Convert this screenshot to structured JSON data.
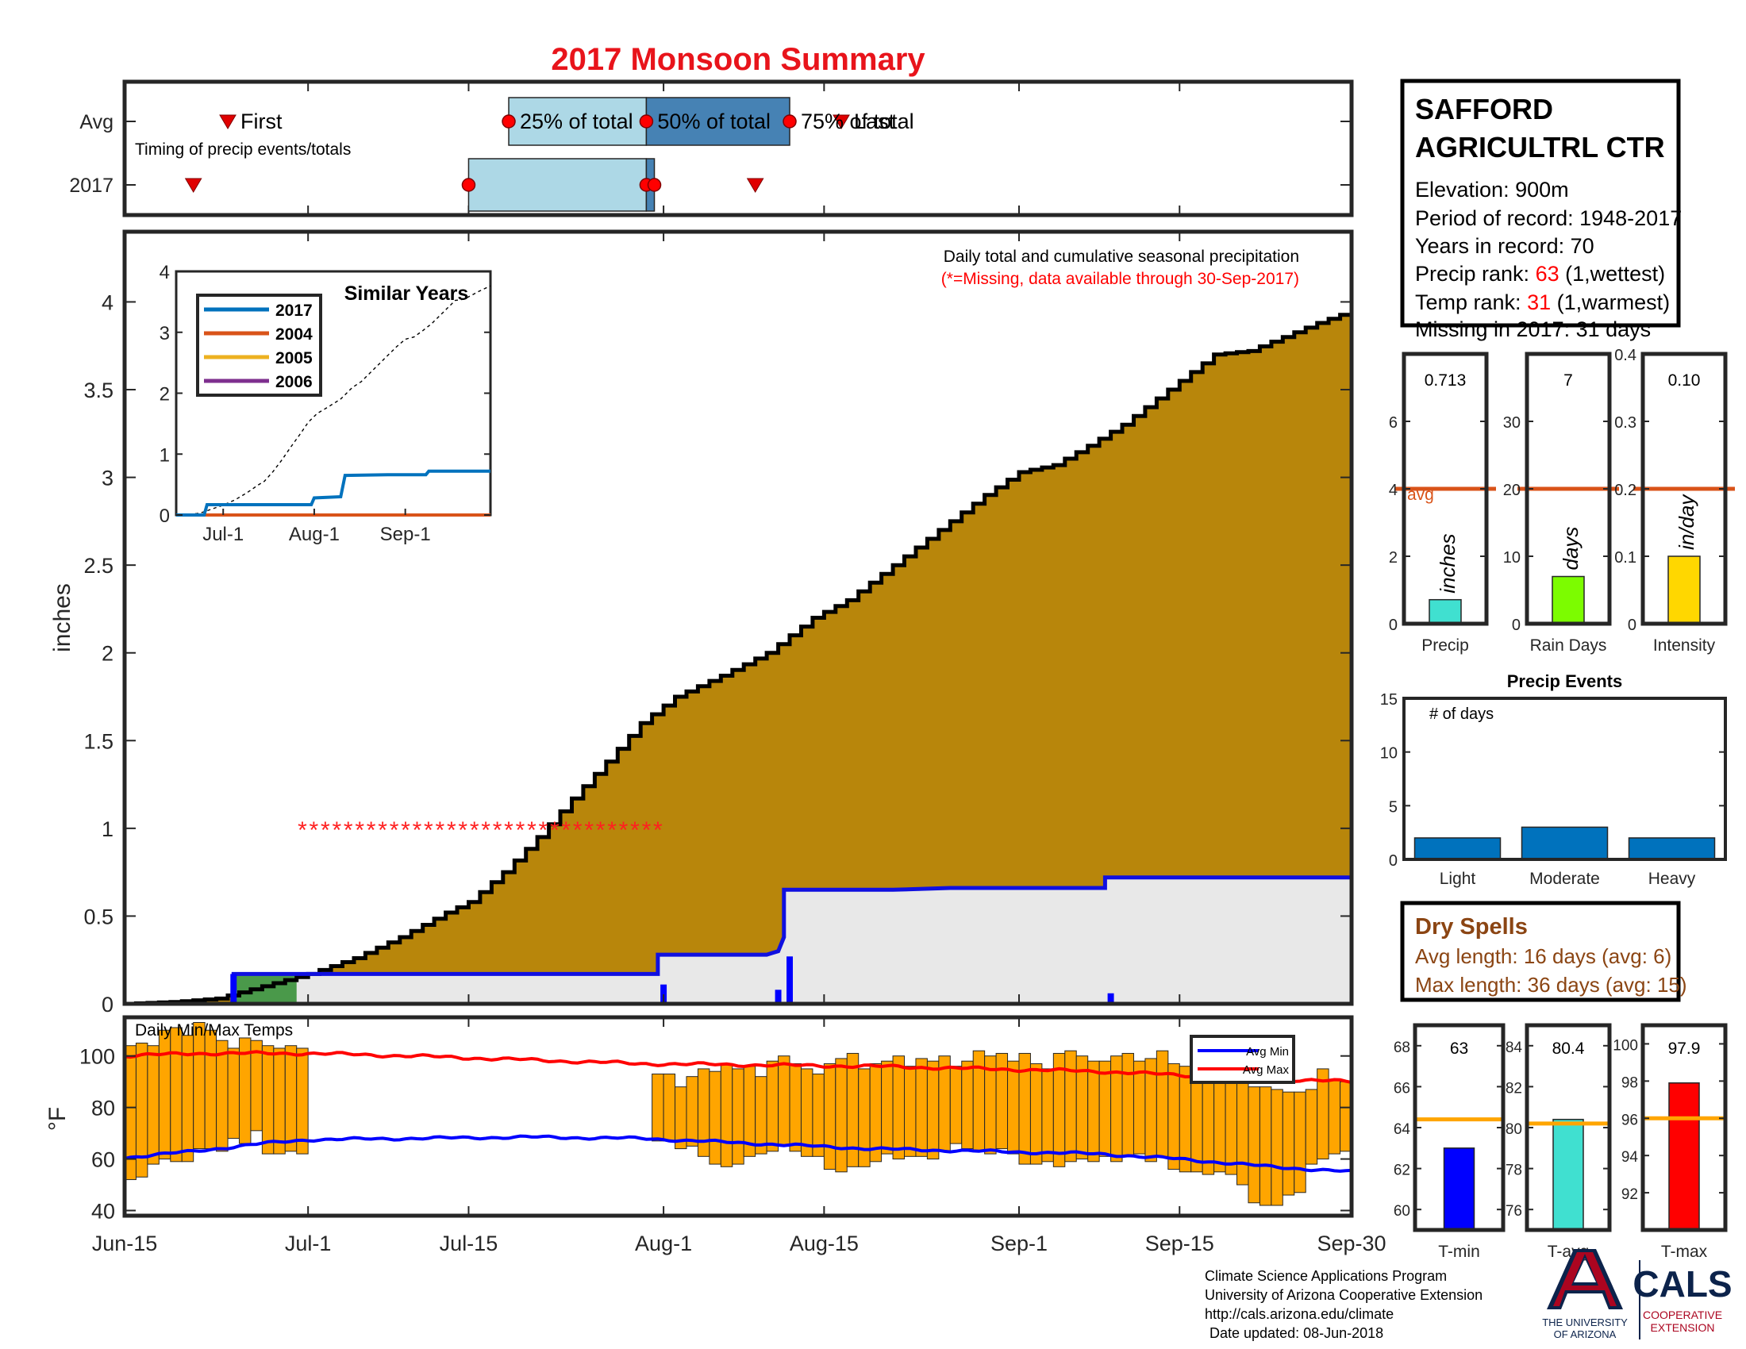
{
  "title": "2017 Monsoon Summary",
  "timing": {
    "row_labels": [
      "Avg",
      "2017"
    ],
    "caption": "Timing of precip events/totals",
    "first_label": "First",
    "last_label": "Last",
    "q25_label": "25% of total",
    "q50_label": "50% of total",
    "q75_label": "75% of total",
    "avg": {
      "first": 9,
      "q25": 33.5,
      "q50": 45.5,
      "q75": 58,
      "last": 62.5
    },
    "y2017": {
      "first": 6,
      "q25": 30,
      "q50": 45.5,
      "q50b": 46.2,
      "last": 55
    }
  },
  "main_caption": "Daily total and cumulative seasonal precipitation",
  "missing_note": "(*=Missing, data available through 30-Sep-2017)",
  "ylabel_precip": "inches",
  "ylabel_temp": "°F",
  "temp_caption": "Daily Min/Max Temps",
  "x_ticks": [
    {
      "label": "Jun-15",
      "day": 0
    },
    {
      "label": "Jul-1",
      "day": 16
    },
    {
      "label": "Jul-15",
      "day": 30
    },
    {
      "label": "Aug-1",
      "day": 47
    },
    {
      "label": "Aug-15",
      "day": 61
    },
    {
      "label": "Sep-1",
      "day": 78
    },
    {
      "label": "Sep-15",
      "day": 92
    },
    {
      "label": "Sep-30",
      "day": 107
    }
  ],
  "chart_data": [
    {
      "type": "area",
      "name": "precip-main",
      "ylim": [
        0,
        4.4
      ],
      "xlim": [
        0,
        107
      ],
      "yticks": [
        0,
        0.5,
        1,
        1.5,
        2,
        2.5,
        3,
        3.5,
        4
      ],
      "avg_cumulative_knots": [
        [
          0,
          0
        ],
        [
          4,
          0.01
        ],
        [
          8,
          0.03
        ],
        [
          12,
          0.1
        ],
        [
          16,
          0.17
        ],
        [
          20,
          0.26
        ],
        [
          24,
          0.38
        ],
        [
          28,
          0.52
        ],
        [
          30,
          0.58
        ],
        [
          33,
          0.75
        ],
        [
          36,
          0.95
        ],
        [
          39,
          1.17
        ],
        [
          42,
          1.38
        ],
        [
          45,
          1.6
        ],
        [
          48,
          1.75
        ],
        [
          52,
          1.87
        ],
        [
          56,
          2.0
        ],
        [
          60,
          2.2
        ],
        [
          63,
          2.3
        ],
        [
          66,
          2.45
        ],
        [
          69,
          2.6
        ],
        [
          72,
          2.75
        ],
        [
          75,
          2.9
        ],
        [
          78,
          3.03
        ],
        [
          81,
          3.07
        ],
        [
          84,
          3.18
        ],
        [
          87,
          3.3
        ],
        [
          90,
          3.45
        ],
        [
          93,
          3.6
        ],
        [
          95,
          3.7
        ],
        [
          98,
          3.72
        ],
        [
          101,
          3.8
        ],
        [
          104,
          3.88
        ],
        [
          107,
          3.95
        ]
      ],
      "cumulative_2017": [
        [
          0,
          0
        ],
        [
          9.5,
          0
        ],
        [
          9.5,
          0.17
        ],
        [
          16,
          0.17
        ],
        [
          46.5,
          0.17
        ],
        [
          46.5,
          0.28
        ],
        [
          56,
          0.28
        ],
        [
          56.5,
          0.29
        ],
        [
          57,
          0.3
        ],
        [
          57.5,
          0.38
        ],
        [
          57.5,
          0.65
        ],
        [
          67,
          0.65
        ],
        [
          72,
          0.66
        ],
        [
          85.5,
          0.66
        ],
        [
          85.5,
          0.72
        ],
        [
          107,
          0.72
        ]
      ],
      "daily_2017": [
        {
          "day": 9.5,
          "value": 0.17
        },
        {
          "day": 47,
          "value": 0.11
        },
        {
          "day": 57,
          "value": 0.08
        },
        {
          "day": 58,
          "value": 0.27
        },
        {
          "day": 86,
          "value": 0.06
        }
      ],
      "missing_days": [
        15.5,
        46.5
      ],
      "missing_marker_value": 1.0,
      "inset": {
        "title": "Similar Years",
        "ylim": [
          0,
          4
        ],
        "yticks": [
          0,
          1,
          2,
          3,
          4
        ],
        "x_ticks": [
          {
            "label": "Jul-1",
            "day": 16
          },
          {
            "label": "Aug-1",
            "day": 47
          },
          {
            "label": "Sep-1",
            "day": 78
          }
        ],
        "series": [
          {
            "name": "2017",
            "color": "#0072BD",
            "points": [
              [
                0,
                0
              ],
              [
                9.5,
                0
              ],
              [
                10.5,
                0.17
              ],
              [
                46,
                0.17
              ],
              [
                47,
                0.28
              ],
              [
                56,
                0.3
              ],
              [
                57.5,
                0.65
              ],
              [
                72,
                0.66
              ],
              [
                85,
                0.66
              ],
              [
                86,
                0.72
              ],
              [
                107,
                0.72
              ]
            ]
          },
          {
            "name": "2004",
            "color": "#D95319",
            "points": [
              [
                0,
                0
              ],
              [
                107,
                0
              ]
            ]
          },
          {
            "name": "2005",
            "color": "#EDB120",
            "points": [
              [
                0,
                0
              ],
              [
                107,
                0
              ]
            ]
          },
          {
            "name": "2006",
            "color": "#7E2F8E",
            "points": [
              [
                0,
                0
              ],
              [
                107,
                0
              ]
            ]
          }
        ]
      }
    },
    {
      "type": "bar",
      "name": "temps",
      "ylim": [
        38,
        115
      ],
      "yticks": [
        40,
        60,
        80,
        100
      ],
      "legend": [
        "Avg Min",
        "Avg Max"
      ],
      "avg_max": [
        [
          0,
          100
        ],
        [
          6,
          101
        ],
        [
          12,
          101
        ],
        [
          16,
          101
        ],
        [
          25,
          100
        ],
        [
          35,
          98.5
        ],
        [
          45,
          97
        ],
        [
          55,
          96.5
        ],
        [
          65,
          96
        ],
        [
          75,
          95
        ],
        [
          85,
          94
        ],
        [
          95,
          92
        ],
        [
          100,
          91
        ],
        [
          107,
          90
        ]
      ],
      "avg_min": [
        [
          0,
          60.5
        ],
        [
          6,
          63
        ],
        [
          12,
          66
        ],
        [
          16,
          67.5
        ],
        [
          25,
          68
        ],
        [
          35,
          68.5
        ],
        [
          45,
          68
        ],
        [
          55,
          66
        ],
        [
          65,
          64
        ],
        [
          75,
          63
        ],
        [
          85,
          62
        ],
        [
          92,
          60
        ],
        [
          100,
          57
        ],
        [
          107,
          55
        ]
      ],
      "daily": {
        "days": [
          0,
          1,
          2,
          3,
          4,
          5,
          6,
          7,
          8,
          9,
          10,
          11,
          12,
          13,
          14,
          15,
          46,
          47,
          48,
          49,
          50,
          51,
          52,
          53,
          54,
          55,
          56,
          57,
          58,
          59,
          60,
          61,
          62,
          63,
          64,
          65,
          66,
          67,
          68,
          69,
          70,
          71,
          72,
          73,
          74,
          75,
          76,
          77,
          78,
          79,
          80,
          81,
          82,
          83,
          84,
          85,
          86,
          87,
          88,
          89,
          90,
          91,
          92,
          93,
          94,
          95,
          96,
          97,
          98,
          99,
          100,
          101,
          102,
          103,
          104,
          105,
          106
        ],
        "tmax": [
          104,
          105,
          104,
          110,
          111,
          108,
          113,
          110,
          106,
          103,
          107,
          106,
          104,
          103,
          104,
          103,
          93,
          93,
          88,
          92,
          95,
          94,
          97,
          95,
          96,
          92,
          98,
          100,
          97,
          95,
          93,
          97,
          99,
          101,
          95,
          97,
          98,
          100,
          96,
          99,
          98,
          100,
          96,
          98,
          102,
          100,
          101,
          98,
          101,
          97,
          95,
          101,
          102,
          100,
          98,
          98,
          100,
          101,
          98,
          99,
          102,
          97,
          96,
          94,
          97,
          98,
          94,
          90,
          88,
          88,
          87,
          86,
          86,
          87,
          95,
          91,
          90
        ],
        "tmin": [
          52,
          53,
          58,
          60,
          59,
          59,
          64,
          64,
          63,
          68,
          66,
          71,
          62,
          62,
          63,
          62,
          67,
          67,
          64,
          65,
          61,
          58,
          57,
          58,
          61,
          62,
          63,
          65,
          63,
          61,
          61,
          56,
          55,
          57,
          57,
          59,
          62,
          60,
          61,
          61,
          60,
          63,
          66,
          64,
          63,
          62,
          64,
          62,
          58,
          58,
          59,
          57,
          59,
          60,
          59,
          61,
          59,
          61,
          62,
          59,
          61,
          56,
          55,
          55,
          54,
          55,
          54,
          50,
          43,
          42,
          42,
          46,
          47,
          58,
          60,
          62,
          63
        ]
      }
    },
    {
      "type": "bar",
      "name": "season-bars",
      "avg_label": "avg",
      "panels": [
        {
          "label": "Precip",
          "unit": "inches",
          "value": 0.713,
          "value_text": "0.713",
          "avg": 4,
          "ylim": [
            0,
            8
          ],
          "yticks": [
            0,
            2,
            4,
            6
          ],
          "color": "#40E0D0"
        },
        {
          "label": "Rain Days",
          "unit": "days",
          "value": 7,
          "value_text": "7",
          "avg": 20,
          "ylim": [
            0,
            40
          ],
          "yticks": [
            0,
            10,
            20,
            30
          ],
          "color": "#7CFC00"
        },
        {
          "label": "Intensity",
          "unit": "in/day",
          "value": 0.1,
          "value_text": "0.10",
          "avg": 0.2,
          "ylim": [
            0,
            0.4
          ],
          "yticks": [
            0,
            0.1,
            0.2,
            0.3,
            0.4
          ],
          "color": "#FFD700"
        }
      ]
    },
    {
      "type": "bar",
      "name": "precip-events",
      "title": "Precip Events",
      "subtitle": "# of days",
      "categories": [
        "Light",
        "Moderate",
        "Heavy"
      ],
      "values": [
        2,
        3,
        2
      ],
      "ylim": [
        0,
        15
      ],
      "yticks": [
        0,
        5,
        10,
        15
      ]
    },
    {
      "type": "bar",
      "name": "temp-bars",
      "panels": [
        {
          "label": "T-min",
          "value": 63,
          "value_text": "63",
          "avg": 64.4,
          "ylim": [
            59,
            69
          ],
          "yticks": [
            60,
            62,
            64,
            66,
            68
          ],
          "color": "#0000FF"
        },
        {
          "label": "T-avg",
          "value": 80.4,
          "value_text": "80.4",
          "avg": 80.2,
          "ylim": [
            75,
            85
          ],
          "yticks": [
            76,
            78,
            80,
            82,
            84
          ],
          "color": "#40E0D0"
        },
        {
          "label": "T-max",
          "value": 97.9,
          "value_text": "97.9",
          "avg": 96.0,
          "ylim": [
            90,
            101
          ],
          "yticks": [
            92,
            94,
            96,
            98,
            100
          ],
          "color": "#FF0000"
        }
      ]
    }
  ],
  "station": {
    "name_line1": "SAFFORD",
    "name_line2": "AGRICULTRL CTR",
    "elevation": "Elevation: 900m",
    "period": "Period of record: 1948-2017",
    "years": "Years in record: 70",
    "precip_rank_label": "Precip rank: ",
    "precip_rank_value": "63",
    "precip_rank_suffix": " (1,wettest)",
    "temp_rank_label": "Temp rank: ",
    "temp_rank_value": "31",
    "temp_rank_suffix": " (1,warmest)",
    "missing": "Missing in 2017: 31 days"
  },
  "dry_spells": {
    "title": "Dry Spells",
    "avg_length": "Avg length: 16 days (avg: 6)",
    "max_length": "Max length: 36 days (avg: 15)"
  },
  "footer": {
    "line1": "Climate Science Applications Program",
    "line2": "University of Arizona Cooperative Extension",
    "line3": "http://cals.arizona.edu/climate",
    "line4": "Date updated: 08-Jun-2018"
  },
  "logos": {
    "ua_text1": "THE UNIVERSITY",
    "ua_text2": "OF ARIZONA",
    "cals": "CALS",
    "cals_sub1": "COOPERATIVE",
    "cals_sub2": "EXTENSION"
  },
  "colors": {
    "title": "#E8141B",
    "avg_area": "#B8860B",
    "obs_fill": "#E8E8E8",
    "obs_line": "#1010E0",
    "temp_bar": "#FFA500",
    "avg_max_line": "#FF0000",
    "avg_min_line": "#0000FF",
    "box_light": "#ADD8E6",
    "box_dark": "#4682B4",
    "event_bar": "#0072BD",
    "dry_text": "#8B4513",
    "avg_line": "#D95319",
    "temp_avg_line": "#FFA500",
    "ua_red": "#AB0520",
    "ua_blue": "#0C234B"
  }
}
